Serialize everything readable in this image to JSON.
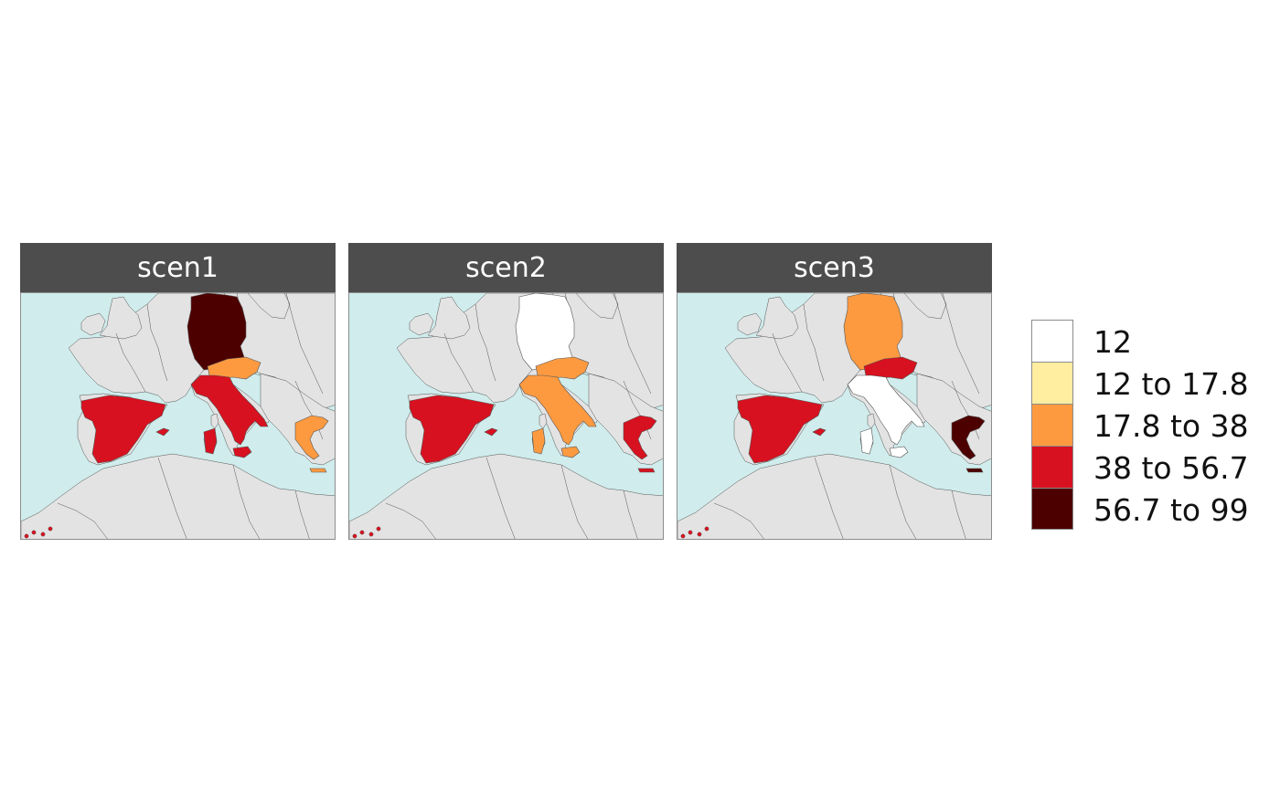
{
  "panels": [
    {
      "title": "scen1",
      "fills": {
        "germany": "#4d0000",
        "austria": "#fd9a40",
        "italy": "#d7111f",
        "spain": "#d7111f",
        "greece": "#fd9a40"
      }
    },
    {
      "title": "scen2",
      "fills": {
        "germany": "#ffffff",
        "austria": "#fd9a40",
        "italy": "#fd9a40",
        "spain": "#d7111f",
        "greece": "#d7111f"
      }
    },
    {
      "title": "scen3",
      "fills": {
        "germany": "#fd9a40",
        "austria": "#d7111f",
        "italy": "#ffffff",
        "spain": "#d7111f",
        "greece": "#4d0000"
      }
    }
  ],
  "legend": [
    {
      "label": "12",
      "color": "#ffffff"
    },
    {
      "label": "12 to 17.8",
      "color": "#ffeda0"
    },
    {
      "label": "17.8 to 38",
      "color": "#fd9a40"
    },
    {
      "label": "38 to 56.7",
      "color": "#d7111f"
    },
    {
      "label": "56.7 to 99",
      "color": "#4d0000"
    }
  ],
  "colors": {
    "sea": "#d0ecec",
    "land": "#e3e3e3",
    "border": "#555555"
  }
}
